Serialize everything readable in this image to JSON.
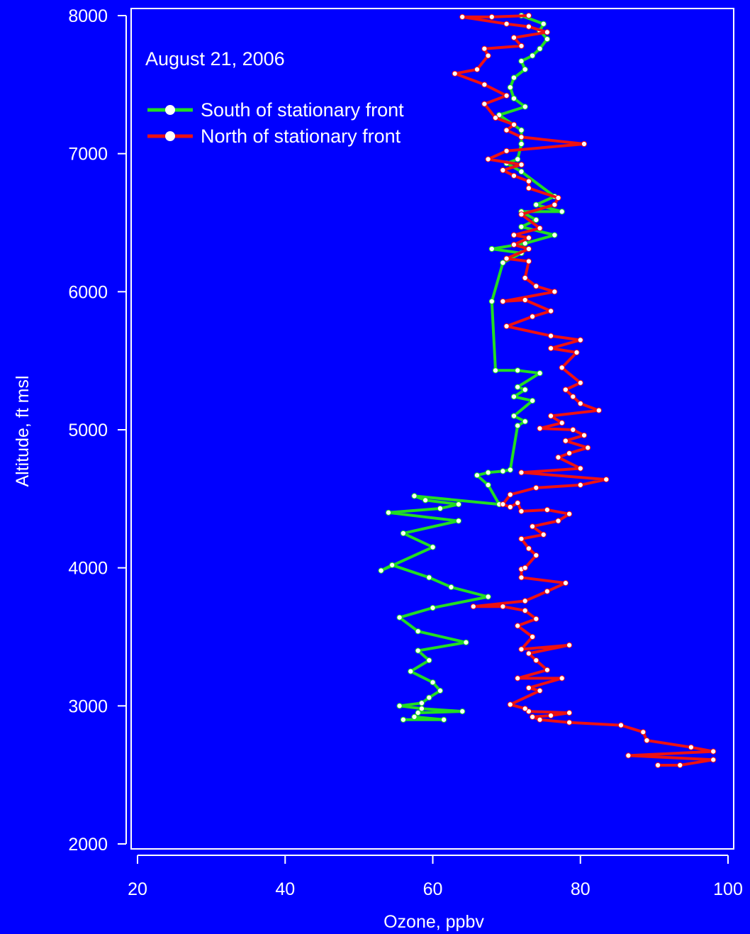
{
  "chart_data": {
    "type": "line",
    "title": "",
    "annotation": "August 21, 2006",
    "xlabel": "Ozone, ppbv",
    "ylabel": "Altitude, ft msl",
    "xlim": [
      20,
      100
    ],
    "ylim": [
      2000,
      8000
    ],
    "xticks": [
      20,
      40,
      60,
      80,
      100
    ],
    "yticks": [
      2000,
      3000,
      4000,
      5000,
      6000,
      7000,
      8000
    ],
    "grid": false,
    "legend": "top-left",
    "colors": {
      "background": "#0000ff",
      "frame": "#ffffff",
      "text": "#ffffff",
      "marker": "#ffffff"
    },
    "series": [
      {
        "name": "South of stationary front",
        "color": "#22dd22",
        "points": [
          [
            56.0,
            2900
          ],
          [
            61.5,
            2900
          ],
          [
            57.5,
            2920
          ],
          [
            58.0,
            2950
          ],
          [
            64.0,
            2960
          ],
          [
            58.5,
            2980
          ],
          [
            55.5,
            3000
          ],
          [
            58.5,
            3020
          ],
          [
            59.5,
            3060
          ],
          [
            61.0,
            3110
          ],
          [
            60.0,
            3170
          ],
          [
            57.0,
            3250
          ],
          [
            59.5,
            3330
          ],
          [
            58.0,
            3400
          ],
          [
            64.5,
            3460
          ],
          [
            58.0,
            3540
          ],
          [
            55.5,
            3640
          ],
          [
            60.0,
            3710
          ],
          [
            67.5,
            3790
          ],
          [
            62.5,
            3860
          ],
          [
            59.5,
            3930
          ],
          [
            54.5,
            4020
          ],
          [
            53.0,
            3980
          ],
          [
            60.0,
            4150
          ],
          [
            56.0,
            4250
          ],
          [
            63.5,
            4340
          ],
          [
            54.0,
            4400
          ],
          [
            61.0,
            4430
          ],
          [
            63.5,
            4460
          ],
          [
            59.0,
            4490
          ],
          [
            57.5,
            4520
          ],
          [
            69.0,
            4460
          ],
          [
            67.5,
            4600
          ],
          [
            66.0,
            4670
          ],
          [
            67.5,
            4690
          ],
          [
            69.5,
            4700
          ],
          [
            70.5,
            4710
          ],
          [
            71.5,
            5030
          ],
          [
            72.5,
            5060
          ],
          [
            71.0,
            5100
          ],
          [
            73.5,
            5210
          ],
          [
            71.0,
            5240
          ],
          [
            72.5,
            5290
          ],
          [
            71.5,
            5310
          ],
          [
            74.5,
            5410
          ],
          [
            71.5,
            5430
          ],
          [
            68.5,
            5430
          ],
          [
            68.0,
            5930
          ],
          [
            69.5,
            6210
          ],
          [
            72.0,
            6280
          ],
          [
            68.0,
            6310
          ],
          [
            72.5,
            6350
          ],
          [
            76.5,
            6410
          ],
          [
            72.0,
            6470
          ],
          [
            74.0,
            6520
          ],
          [
            72.0,
            6580
          ],
          [
            77.5,
            6580
          ],
          [
            74.0,
            6630
          ],
          [
            76.5,
            6690
          ],
          [
            72.0,
            6870
          ],
          [
            70.0,
            6930
          ],
          [
            71.5,
            6960
          ],
          [
            72.0,
            7070
          ],
          [
            72.0,
            7170
          ],
          [
            69.0,
            7280
          ],
          [
            72.5,
            7340
          ],
          [
            71.0,
            7400
          ],
          [
            70.5,
            7480
          ],
          [
            71.0,
            7550
          ],
          [
            72.5,
            7610
          ],
          [
            72.0,
            7670
          ],
          [
            73.5,
            7710
          ],
          [
            74.5,
            7760
          ],
          [
            75.5,
            7830
          ],
          [
            74.5,
            7890
          ],
          [
            75.0,
            7940
          ],
          [
            72.0,
            8000
          ]
        ]
      },
      {
        "name": "North of stationary front",
        "color": "#ee1111",
        "points": [
          [
            90.5,
            2570
          ],
          [
            93.5,
            2570
          ],
          [
            98.0,
            2610
          ],
          [
            86.5,
            2640
          ],
          [
            98.0,
            2670
          ],
          [
            95.0,
            2700
          ],
          [
            89.0,
            2750
          ],
          [
            88.5,
            2810
          ],
          [
            85.5,
            2860
          ],
          [
            78.5,
            2880
          ],
          [
            74.5,
            2900
          ],
          [
            73.5,
            2920
          ],
          [
            76.0,
            2930
          ],
          [
            78.5,
            2950
          ],
          [
            73.0,
            2960
          ],
          [
            72.5,
            2980
          ],
          [
            70.5,
            3010
          ],
          [
            74.5,
            3110
          ],
          [
            73.0,
            3130
          ],
          [
            77.5,
            3200
          ],
          [
            71.5,
            3200
          ],
          [
            75.5,
            3260
          ],
          [
            74.0,
            3330
          ],
          [
            73.0,
            3380
          ],
          [
            78.5,
            3440
          ],
          [
            72.0,
            3410
          ],
          [
            73.5,
            3500
          ],
          [
            71.5,
            3580
          ],
          [
            74.0,
            3630
          ],
          [
            72.5,
            3690
          ],
          [
            69.5,
            3720
          ],
          [
            65.5,
            3720
          ],
          [
            72.5,
            3760
          ],
          [
            75.5,
            3830
          ],
          [
            78.0,
            3890
          ],
          [
            72.0,
            3930
          ],
          [
            72.0,
            3990
          ],
          [
            72.5,
            4000
          ],
          [
            74.0,
            4090
          ],
          [
            73.0,
            4140
          ],
          [
            72.0,
            4210
          ],
          [
            75.0,
            4240
          ],
          [
            73.5,
            4300
          ],
          [
            77.0,
            4340
          ],
          [
            78.5,
            4390
          ],
          [
            75.5,
            4420
          ],
          [
            72.0,
            4410
          ],
          [
            71.5,
            4470
          ],
          [
            70.5,
            4440
          ],
          [
            69.5,
            4460
          ],
          [
            70.5,
            4530
          ],
          [
            74.0,
            4580
          ],
          [
            80.0,
            4600
          ],
          [
            83.5,
            4640
          ],
          [
            72.0,
            4690
          ],
          [
            80.0,
            4720
          ],
          [
            77.0,
            4800
          ],
          [
            78.5,
            4830
          ],
          [
            81.0,
            4870
          ],
          [
            78.0,
            4920
          ],
          [
            80.5,
            4960
          ],
          [
            79.0,
            5000
          ],
          [
            74.5,
            5010
          ],
          [
            77.5,
            5050
          ],
          [
            76.0,
            5100
          ],
          [
            82.5,
            5140
          ],
          [
            80.0,
            5190
          ],
          [
            79.0,
            5240
          ],
          [
            78.0,
            5290
          ],
          [
            80.0,
            5340
          ],
          [
            77.5,
            5450
          ],
          [
            79.5,
            5560
          ],
          [
            76.0,
            5590
          ],
          [
            80.0,
            5650
          ],
          [
            76.0,
            5680
          ],
          [
            70.0,
            5750
          ],
          [
            73.5,
            5820
          ],
          [
            76.0,
            5860
          ],
          [
            72.5,
            5940
          ],
          [
            69.5,
            5930
          ],
          [
            76.5,
            6000
          ],
          [
            74.0,
            6040
          ],
          [
            72.5,
            6100
          ],
          [
            73.0,
            6220
          ],
          [
            70.0,
            6240
          ],
          [
            73.0,
            6310
          ],
          [
            71.0,
            6340
          ],
          [
            73.0,
            6390
          ],
          [
            71.0,
            6410
          ],
          [
            74.5,
            6460
          ],
          [
            72.0,
            6560
          ],
          [
            76.5,
            6630
          ],
          [
            77.0,
            6680
          ],
          [
            73.0,
            6750
          ],
          [
            73.0,
            6800
          ],
          [
            71.0,
            6840
          ],
          [
            69.5,
            6880
          ],
          [
            72.0,
            6920
          ],
          [
            67.5,
            6960
          ],
          [
            70.0,
            7020
          ],
          [
            80.5,
            7070
          ],
          [
            72.0,
            7120
          ],
          [
            70.0,
            7170
          ],
          [
            71.0,
            7210
          ],
          [
            68.5,
            7260
          ],
          [
            67.0,
            7360
          ],
          [
            70.0,
            7420
          ],
          [
            67.0,
            7500
          ],
          [
            63.0,
            7580
          ],
          [
            66.0,
            7610
          ],
          [
            67.5,
            7710
          ],
          [
            67.0,
            7760
          ],
          [
            72.0,
            7780
          ],
          [
            71.0,
            7840
          ],
          [
            75.5,
            7880
          ],
          [
            73.0,
            7920
          ],
          [
            70.0,
            7940
          ],
          [
            64.0,
            7990
          ],
          [
            68.0,
            7990
          ],
          [
            73.0,
            8000
          ]
        ]
      }
    ]
  }
}
